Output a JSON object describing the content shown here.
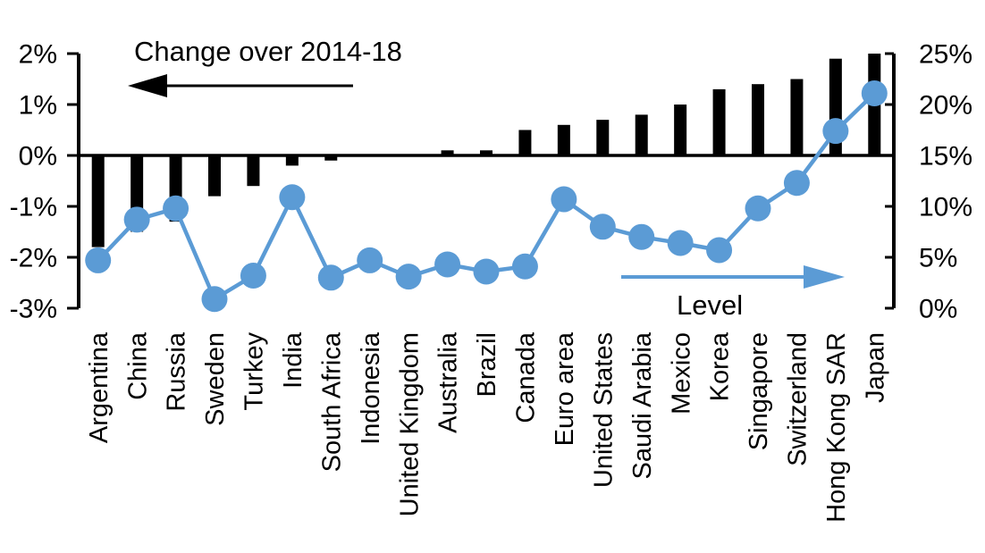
{
  "chart_data": {
    "type": "combo-bar-line",
    "title": "Change over 2014-18",
    "background_color": "#FFFFFF",
    "bar_color": "#000000",
    "line_color": "#5B9BD5",
    "categories": [
      "Argentina",
      "China",
      "Russia",
      "Sweden",
      "Turkey",
      "India",
      "South Africa",
      "Indonesia",
      "United Kingdom",
      "Australia",
      "Brazil",
      "Canada",
      "Euro area",
      "United States",
      "Saudi Arabia",
      "Mexico",
      "Korea",
      "Singapore",
      "Switzerland",
      "Hong Kong SAR",
      "Japan"
    ],
    "series": [
      {
        "name": "Change over 2014-18",
        "type": "bar",
        "axis": "left",
        "color": "#000000",
        "values": [
          -1.8,
          -1.5,
          -1.3,
          -0.8,
          -0.6,
          -0.2,
          -0.1,
          0.0,
          0.0,
          0.1,
          0.1,
          0.5,
          0.6,
          0.7,
          0.8,
          1.0,
          1.3,
          1.4,
          1.5,
          1.9,
          2.0
        ]
      },
      {
        "name": "Level",
        "type": "line",
        "axis": "right",
        "color": "#5B9BD5",
        "values": [
          4.7,
          8.7,
          9.8,
          0.9,
          3.2,
          10.9,
          3.0,
          4.7,
          3.1,
          4.3,
          3.6,
          4.1,
          10.7,
          8.0,
          7.0,
          6.4,
          5.7,
          9.8,
          12.3,
          17.4,
          21.1
        ]
      }
    ],
    "left_axis": {
      "min": -3,
      "max": 2,
      "tick_labels": [
        "2%",
        "1%",
        "0%",
        "-1%",
        "-2%",
        "-3%"
      ],
      "tick_values": [
        2,
        1,
        0,
        -1,
        -2,
        -3
      ]
    },
    "right_axis": {
      "min": 0,
      "max": 25,
      "tick_labels": [
        "25%",
        "20%",
        "15%",
        "10%",
        "5%",
        "0%"
      ],
      "tick_values": [
        25,
        20,
        15,
        10,
        5,
        0
      ]
    },
    "annotations": {
      "bar_series_label": "Change over 2014-18",
      "bar_arrow_direction": "left",
      "line_series_label": "Level",
      "line_arrow_direction": "right"
    },
    "grid": "off",
    "legend": "none"
  }
}
